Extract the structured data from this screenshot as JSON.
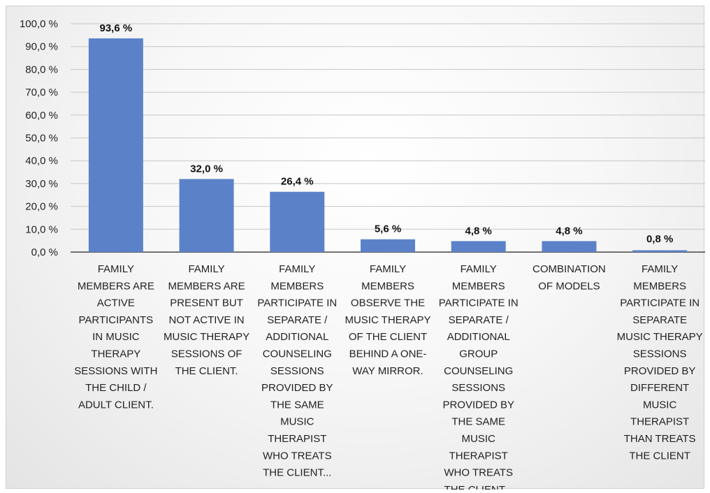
{
  "chart_data": {
    "type": "bar",
    "title": "",
    "xlabel": "",
    "ylabel": "",
    "ylim": [
      0,
      100
    ],
    "y_ticks": [
      "0,0 %",
      "10,0 %",
      "20,0 %",
      "30,0 %",
      "40,0 %",
      "50,0 %",
      "60,0 %",
      "70,0 %",
      "80,0 %",
      "90,0 %",
      "100,0 %"
    ],
    "grid": true,
    "bar_color": "#5b82c9",
    "categories": [
      [
        "FAMILY",
        "MEMBERS ARE",
        "ACTIVE",
        "PARTICIPANTS",
        "IN MUSIC",
        "THERAPY",
        "SESSIONS WITH",
        "THE CHILD /",
        "ADULT CLIENT."
      ],
      [
        "FAMILY",
        "MEMBERS ARE",
        "PRESENT BUT",
        "NOT ACTIVE IN",
        "MUSIC THERAPY",
        "SESSIONS OF",
        "THE CLIENT."
      ],
      [
        "FAMILY",
        "MEMBERS",
        "PARTICIPATE IN",
        "SEPARATE /",
        "ADDITIONAL",
        "COUNSELING",
        "SESSIONS",
        "PROVIDED BY",
        "THE SAME",
        "MUSIC",
        "THERAPIST",
        "WHO TREATS",
        "THE CLIENT..."
      ],
      [
        "FAMILY",
        "MEMBERS",
        "OBSERVE THE",
        "MUSIC THERAPY",
        "OF THE CLIENT",
        "BEHIND A ONE-",
        "WAY MIRROR."
      ],
      [
        "FAMILY",
        "MEMBERS",
        "PARTICIPATE IN",
        "SEPARATE /",
        "ADDITIONAL",
        "GROUP",
        "COUNSELING",
        "SESSIONS",
        "PROVIDED BY",
        "THE SAME",
        "MUSIC",
        "THERAPIST",
        "WHO TREATS",
        "THE CLIENT..."
      ],
      [
        "COMBINATION",
        "OF MODELS"
      ],
      [
        "FAMILY",
        "MEMBERS",
        "PARTICIPATE IN",
        "SEPARATE",
        "MUSIC THERAPY",
        "SESSIONS",
        "PROVIDED BY",
        "DIFFERENT",
        "MUSIC",
        "THERAPIST",
        "THAN TREATS",
        "THE CLIENT"
      ]
    ],
    "values": [
      93.6,
      32.0,
      26.4,
      5.6,
      4.8,
      4.8,
      0.8
    ],
    "data_labels": [
      "93,6 %",
      "32,0 %",
      "26,4 %",
      "5,6 %",
      "4,8 %",
      "4,8 %",
      "0,8 %"
    ]
  }
}
